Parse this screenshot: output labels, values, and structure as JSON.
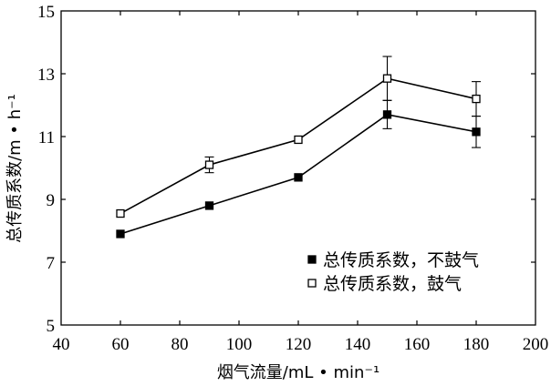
{
  "chart_data": {
    "type": "line",
    "xlabel": "烟气流量/mL • min⁻¹",
    "ylabel": "总传质系数/m • h⁻¹",
    "xlim": [
      40,
      200
    ],
    "ylim": [
      5,
      15
    ],
    "x_ticks": [
      40,
      60,
      80,
      100,
      120,
      140,
      160,
      180,
      200
    ],
    "y_ticks": [
      5,
      7,
      9,
      11,
      13,
      15
    ],
    "grid": false,
    "legend_position": "bottom-right",
    "x": [
      60,
      90,
      120,
      150,
      180
    ],
    "series": [
      {
        "name": "总传质系数，不鼓气",
        "marker": "filled-square",
        "color": "#000000",
        "values": [
          7.9,
          8.8,
          9.7,
          11.7,
          11.15
        ],
        "errors": [
          0,
          0,
          0,
          0.45,
          0.5
        ]
      },
      {
        "name": "总传质系数，鼓气",
        "marker": "open-square",
        "color": "#000000",
        "values": [
          8.55,
          10.1,
          10.9,
          12.85,
          12.2
        ],
        "errors": [
          0,
          0.25,
          0,
          0.7,
          0.55
        ]
      }
    ]
  }
}
